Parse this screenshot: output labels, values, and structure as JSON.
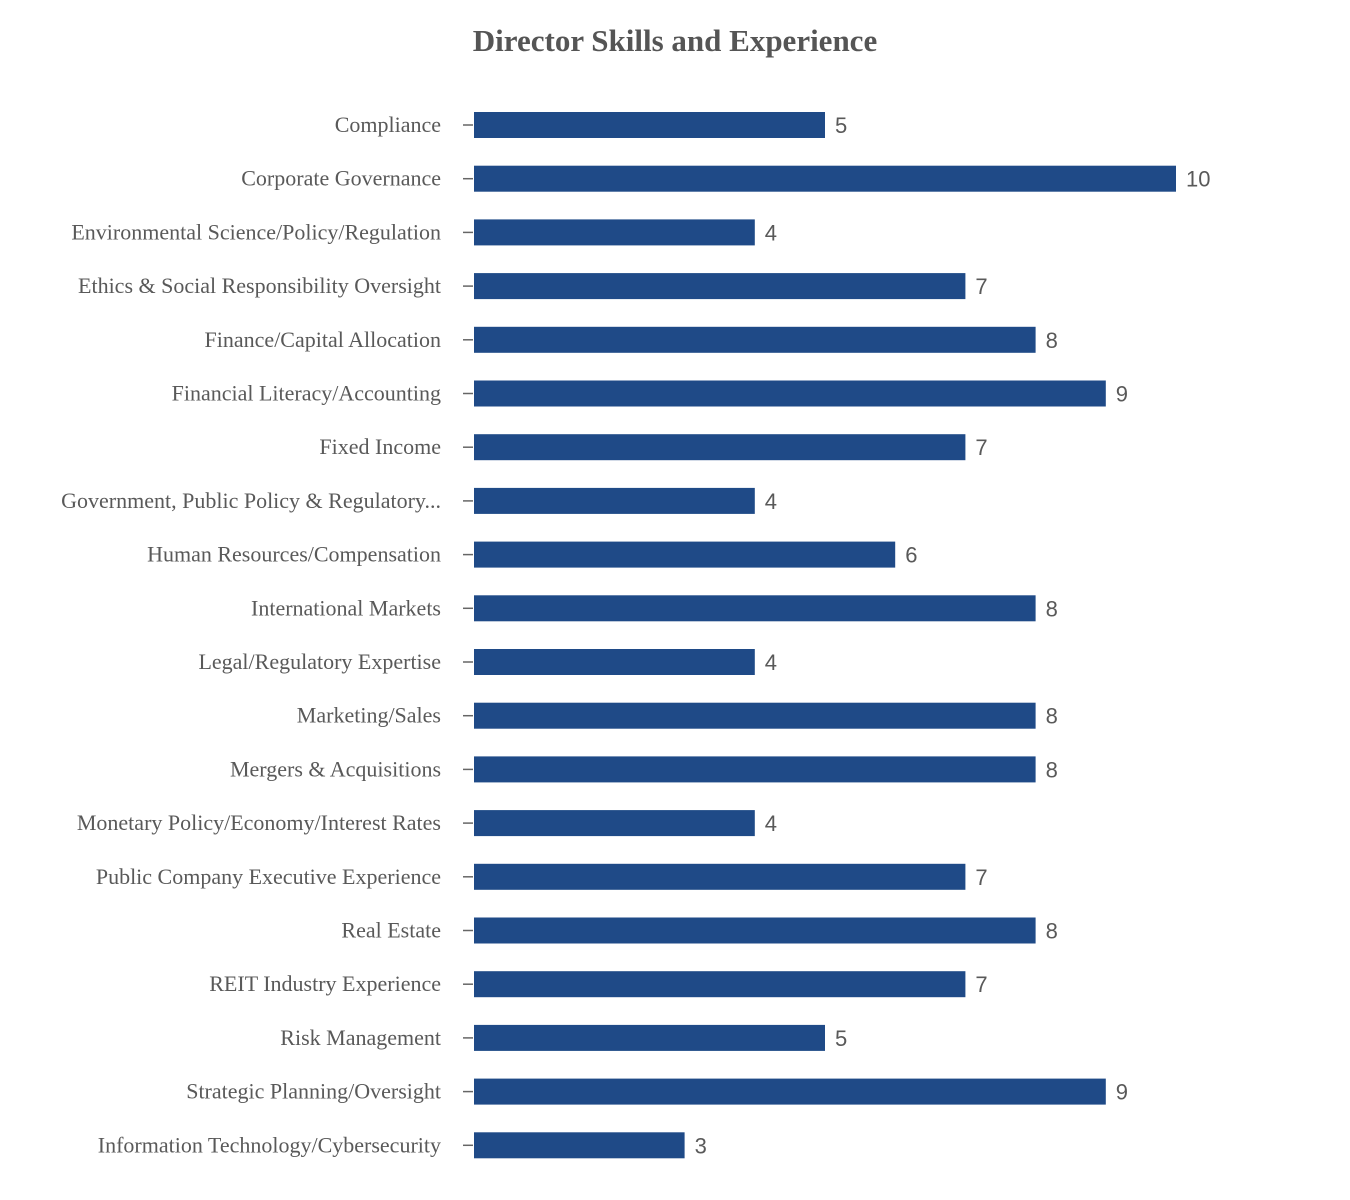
{
  "chart_data": {
    "type": "bar",
    "orientation": "horizontal",
    "title": "Director Skills and Experience",
    "xlabel": "",
    "ylabel": "",
    "xlim": [
      0,
      10
    ],
    "grid": false,
    "bar_color": "#1f4a87",
    "categories": [
      "Compliance",
      "Corporate Governance",
      "Environmental Science/Policy/Regulation",
      "Ethics & Social Responsibility Oversight",
      "Finance/Capital Allocation",
      "Financial Literacy/Accounting",
      "Fixed Income",
      "Government, Public Policy & Regulatory...",
      "Human Resources/Compensation",
      "International Markets",
      "Legal/Regulatory Expertise",
      "Marketing/Sales",
      "Mergers & Acquisitions",
      "Monetary Policy/Economy/Interest Rates",
      "Public Company Executive Experience",
      "Real Estate",
      "REIT Industry Experience",
      "Risk Management",
      "Strategic Planning/Oversight",
      "Information Technology/Cybersecurity"
    ],
    "values": [
      5,
      10,
      4,
      7,
      8,
      9,
      7,
      4,
      6,
      8,
      4,
      8,
      8,
      4,
      7,
      8,
      7,
      5,
      9,
      3
    ]
  }
}
